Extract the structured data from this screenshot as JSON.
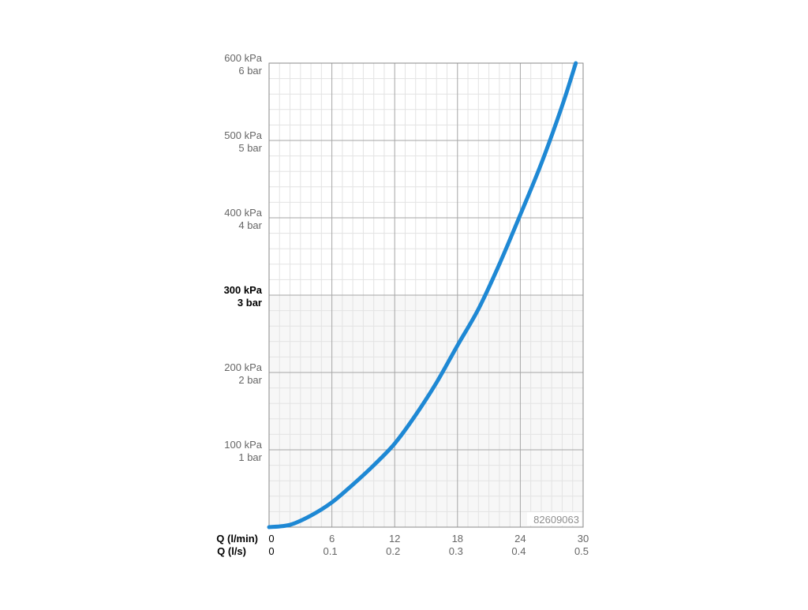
{
  "chart_data": {
    "type": "line",
    "title": "",
    "watermark_id": "82609063",
    "xlim": [
      0,
      30
    ],
    "ylim": [
      0,
      600
    ],
    "grid": true,
    "y_ticks": [
      {
        "value": 100,
        "kpa": "100 kPa",
        "bar": "1 bar",
        "emphasis": false
      },
      {
        "value": 200,
        "kpa": "200 kPa",
        "bar": "2 bar",
        "emphasis": false
      },
      {
        "value": 300,
        "kpa": "300 kPa",
        "bar": "3 bar",
        "emphasis": true
      },
      {
        "value": 400,
        "kpa": "400 kPa",
        "bar": "4 bar",
        "emphasis": false
      },
      {
        "value": 500,
        "kpa": "500 kPa",
        "bar": "5 bar",
        "emphasis": false
      },
      {
        "value": 600,
        "kpa": "600 kPa",
        "bar": "6 bar",
        "emphasis": false
      }
    ],
    "x_axis_primary": {
      "label": "Q (l/min)",
      "ticks": [
        {
          "value": 0,
          "label": "0"
        },
        {
          "value": 6,
          "label": "6"
        },
        {
          "value": 12,
          "label": "12"
        },
        {
          "value": 18,
          "label": "18"
        },
        {
          "value": 24,
          "label": "24"
        },
        {
          "value": 30,
          "label": "30"
        }
      ]
    },
    "x_axis_secondary": {
      "label": "Q (l/s)",
      "ticks": [
        {
          "value": 0,
          "label": "0"
        },
        {
          "value": 6,
          "label": "0.1"
        },
        {
          "value": 12,
          "label": "0.2"
        },
        {
          "value": 18,
          "label": "0.3"
        },
        {
          "value": 24,
          "label": "0.4"
        },
        {
          "value": 30,
          "label": "0.5"
        }
      ]
    },
    "series": [
      {
        "color": "#1e88d4",
        "x": [
          0,
          2,
          4,
          6,
          8,
          10,
          12,
          14,
          16,
          18,
          20,
          22,
          24,
          26,
          28,
          29.3
        ],
        "y": [
          0,
          3,
          15,
          32,
          55,
          80,
          108,
          145,
          187,
          235,
          282,
          340,
          404,
          470,
          545,
          600
        ]
      }
    ],
    "colors": {
      "grid_minor": "#e3e3e3",
      "grid_major": "#a6a6a6",
      "axis_frame": "#8a8a8a",
      "tick_text": "#666666",
      "bold_text": "#000000",
      "low_band": "#f7f7f7",
      "watermark_text": "#8f8f8f"
    }
  }
}
